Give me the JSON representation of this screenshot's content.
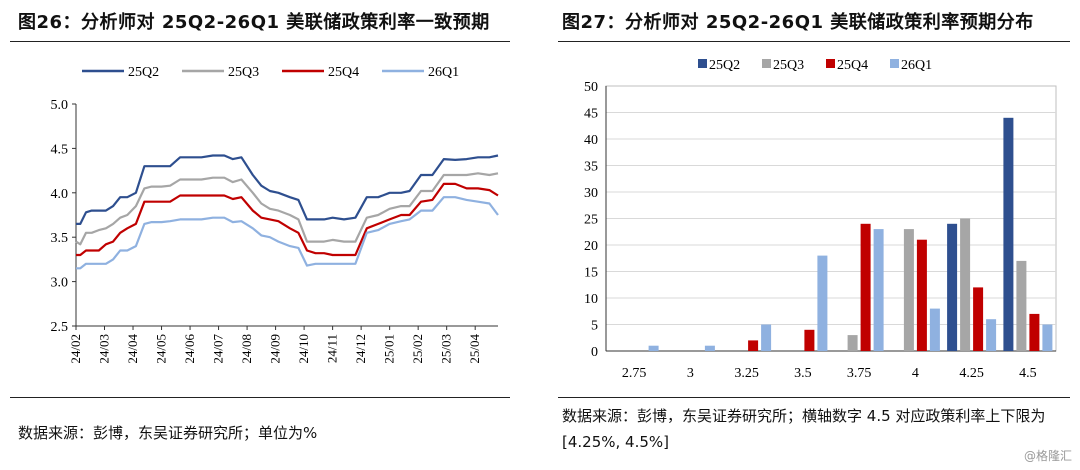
{
  "left_panel": {
    "title": "图26：分析师对 25Q2-26Q1 美联储政策利率一致预期",
    "source": "数据来源：彭博，东吴证券研究所；单位为%"
  },
  "right_panel": {
    "title": "图27：分析师对 25Q2-26Q1 美联储政策利率预期分布",
    "source": "数据来源：彭博，东吴证券研究所；横轴数字 4.5 对应政策利率上下限为[4.25%, 4.5%]"
  },
  "watermark": "@格隆汇",
  "chart_data": [
    {
      "type": "line",
      "title": "",
      "xlabel": "",
      "ylabel": "",
      "ylim": [
        2.5,
        5.0
      ],
      "yticks": [
        "2.5",
        "3.0",
        "3.5",
        "4.0",
        "4.5",
        "5.0"
      ],
      "x_tick_labels": [
        "24/02",
        "24/03",
        "24/04",
        "24/05",
        "24/06",
        "24/07",
        "24/08",
        "24/09",
        "24/10",
        "24/11",
        "24/12",
        "25/01",
        "25/02",
        "25/03",
        "25/04"
      ],
      "x_range_months": [
        0,
        14.8
      ],
      "grid": false,
      "legend": "top",
      "colors": [
        "#2e4f8f",
        "#a6a6a6",
        "#c00000",
        "#8fb1e0"
      ],
      "series": [
        {
          "name": "25Q2",
          "x": [
            0,
            0.15,
            0.35,
            0.55,
            0.8,
            1.05,
            1.3,
            1.55,
            1.8,
            2.1,
            2.4,
            2.65,
            3.0,
            3.3,
            3.65,
            4.0,
            4.4,
            4.8,
            5.2,
            5.5,
            5.8,
            6.2,
            6.5,
            6.8,
            7.1,
            7.5,
            7.8,
            8.1,
            8.4,
            8.7,
            9.0,
            9.4,
            9.8,
            10.2,
            10.6,
            11.0,
            11.4,
            11.7,
            12.1,
            12.5,
            12.9,
            13.3,
            13.7,
            14.1,
            14.5,
            14.8
          ],
          "values": [
            3.65,
            3.65,
            3.78,
            3.8,
            3.8,
            3.8,
            3.85,
            3.95,
            3.95,
            4.0,
            4.3,
            4.3,
            4.3,
            4.3,
            4.4,
            4.4,
            4.4,
            4.42,
            4.42,
            4.38,
            4.4,
            4.2,
            4.08,
            4.02,
            4.0,
            3.95,
            3.92,
            3.7,
            3.7,
            3.7,
            3.72,
            3.7,
            3.72,
            3.95,
            3.95,
            4.0,
            4.0,
            4.02,
            4.2,
            4.2,
            4.38,
            4.37,
            4.38,
            4.4,
            4.4,
            4.42
          ]
        },
        {
          "name": "25Q3",
          "x": [
            0,
            0.15,
            0.35,
            0.55,
            0.8,
            1.05,
            1.3,
            1.55,
            1.8,
            2.1,
            2.4,
            2.65,
            3.0,
            3.3,
            3.65,
            4.0,
            4.4,
            4.8,
            5.2,
            5.5,
            5.8,
            6.2,
            6.5,
            6.8,
            7.1,
            7.5,
            7.8,
            8.1,
            8.4,
            8.7,
            9.0,
            9.4,
            9.8,
            10.2,
            10.6,
            11.0,
            11.4,
            11.7,
            12.1,
            12.5,
            12.9,
            13.3,
            13.7,
            14.1,
            14.5,
            14.8
          ],
          "values": [
            3.45,
            3.42,
            3.55,
            3.55,
            3.58,
            3.6,
            3.65,
            3.72,
            3.75,
            3.85,
            4.05,
            4.07,
            4.07,
            4.08,
            4.15,
            4.15,
            4.15,
            4.17,
            4.17,
            4.12,
            4.15,
            4.0,
            3.88,
            3.82,
            3.8,
            3.75,
            3.7,
            3.45,
            3.45,
            3.45,
            3.47,
            3.45,
            3.45,
            3.72,
            3.75,
            3.82,
            3.85,
            3.85,
            4.02,
            4.02,
            4.2,
            4.2,
            4.2,
            4.22,
            4.2,
            4.22
          ]
        },
        {
          "name": "25Q4",
          "x": [
            0,
            0.15,
            0.35,
            0.55,
            0.8,
            1.05,
            1.3,
            1.55,
            1.8,
            2.1,
            2.4,
            2.65,
            3.0,
            3.3,
            3.65,
            4.0,
            4.4,
            4.8,
            5.2,
            5.5,
            5.8,
            6.2,
            6.5,
            6.8,
            7.1,
            7.5,
            7.8,
            8.1,
            8.4,
            8.7,
            9.0,
            9.4,
            9.8,
            10.2,
            10.6,
            11.0,
            11.4,
            11.7,
            12.1,
            12.5,
            12.9,
            13.3,
            13.7,
            14.1,
            14.5,
            14.8
          ],
          "values": [
            3.3,
            3.3,
            3.35,
            3.35,
            3.35,
            3.42,
            3.45,
            3.55,
            3.6,
            3.65,
            3.9,
            3.9,
            3.9,
            3.9,
            3.97,
            3.97,
            3.97,
            3.97,
            3.97,
            3.93,
            3.95,
            3.8,
            3.72,
            3.7,
            3.68,
            3.6,
            3.55,
            3.35,
            3.32,
            3.32,
            3.3,
            3.3,
            3.3,
            3.6,
            3.65,
            3.7,
            3.75,
            3.75,
            3.9,
            3.92,
            4.1,
            4.1,
            4.05,
            4.05,
            4.03,
            3.97
          ]
        },
        {
          "name": "26Q1",
          "x": [
            0,
            0.15,
            0.35,
            0.55,
            0.8,
            1.05,
            1.3,
            1.55,
            1.8,
            2.1,
            2.4,
            2.65,
            3.0,
            3.3,
            3.65,
            4.0,
            4.4,
            4.8,
            5.2,
            5.5,
            5.8,
            6.2,
            6.5,
            6.8,
            7.1,
            7.5,
            7.8,
            8.1,
            8.4,
            8.7,
            9.0,
            9.4,
            9.8,
            10.2,
            10.6,
            11.0,
            11.4,
            11.7,
            12.1,
            12.5,
            12.9,
            13.3,
            13.7,
            14.1,
            14.5,
            14.8
          ],
          "values": [
            3.15,
            3.15,
            3.2,
            3.2,
            3.2,
            3.2,
            3.25,
            3.35,
            3.35,
            3.4,
            3.65,
            3.67,
            3.67,
            3.68,
            3.7,
            3.7,
            3.7,
            3.72,
            3.72,
            3.67,
            3.68,
            3.6,
            3.52,
            3.5,
            3.45,
            3.4,
            3.38,
            3.18,
            3.2,
            3.2,
            3.2,
            3.2,
            3.2,
            3.55,
            3.58,
            3.65,
            3.68,
            3.7,
            3.8,
            3.8,
            3.95,
            3.95,
            3.92,
            3.9,
            3.88,
            3.75
          ]
        }
      ]
    },
    {
      "type": "bar",
      "title": "",
      "xlabel": "",
      "ylabel": "",
      "ylim": [
        0,
        50
      ],
      "yticks": [
        "0",
        "5",
        "10",
        "15",
        "20",
        "25",
        "30",
        "35",
        "40",
        "45",
        "50"
      ],
      "categories": [
        "2.75",
        "3",
        "3.25",
        "3.5",
        "3.75",
        "4",
        "4.25",
        "4.5"
      ],
      "grid": true,
      "legend": "top",
      "colors": [
        "#2e4f8f",
        "#a6a6a6",
        "#c00000",
        "#8fb1e0"
      ],
      "series": [
        {
          "name": "25Q2",
          "values": [
            0,
            0,
            0,
            0,
            0,
            0,
            24,
            44
          ]
        },
        {
          "name": "25Q3",
          "values": [
            0,
            0,
            0,
            0,
            3,
            23,
            25,
            17
          ]
        },
        {
          "name": "25Q4",
          "values": [
            0,
            0,
            2,
            4,
            24,
            21,
            12,
            7
          ]
        },
        {
          "name": "26Q1",
          "values": [
            1,
            1,
            5,
            18,
            23,
            8,
            6,
            5
          ]
        }
      ]
    }
  ]
}
